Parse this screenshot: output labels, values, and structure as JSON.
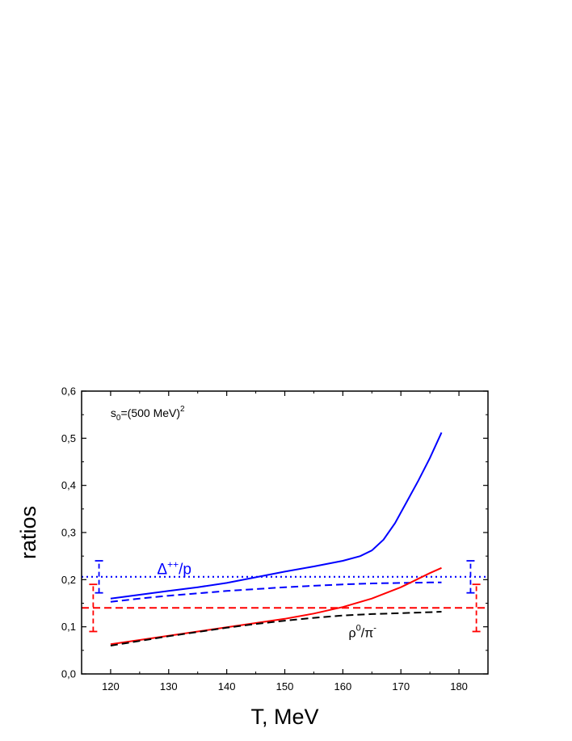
{
  "chart_data": {
    "type": "line",
    "xlabel": "T, MeV",
    "ylabel": "ratios",
    "xlim": [
      115,
      185
    ],
    "ylim": [
      0.0,
      0.6
    ],
    "x_ticks": [
      "120",
      "130",
      "140",
      "150",
      "160",
      "170",
      "180"
    ],
    "y_ticks": [
      "0,0",
      "0,1",
      "0,2",
      "0,3",
      "0,4",
      "0,5",
      "0,6"
    ],
    "grid": false,
    "annotations": {
      "s0": {
        "base": "s",
        "sub": "0",
        "mid": "=(500 MeV)",
        "sup": "2",
        "x": 120,
        "y": 0.545
      },
      "delta": {
        "base": "Δ",
        "sup": "++",
        "rest": "/p",
        "x": 128,
        "y": 0.212,
        "color": "#0000ff"
      },
      "rho": {
        "base": "ρ",
        "sup": "0",
        "mid": "/π",
        "sup2": "-",
        "x": 161,
        "y": 0.078,
        "color": "#000000"
      }
    },
    "series": [
      {
        "style": "solid",
        "color": "#0000ff",
        "x": [
          120,
          125,
          130,
          135,
          140,
          145,
          150,
          155,
          160,
          163,
          165,
          167,
          169,
          171,
          173,
          175,
          177
        ],
        "y": [
          0.16,
          0.168,
          0.176,
          0.184,
          0.193,
          0.205,
          0.217,
          0.228,
          0.24,
          0.25,
          0.262,
          0.285,
          0.32,
          0.365,
          0.41,
          0.458,
          0.512
        ]
      },
      {
        "style": "dashed",
        "color": "#0000ff",
        "x": [
          120,
          125,
          130,
          135,
          140,
          145,
          150,
          155,
          160,
          165,
          170,
          175,
          177
        ],
        "y": [
          0.153,
          0.16,
          0.166,
          0.171,
          0.176,
          0.18,
          0.184,
          0.187,
          0.19,
          0.192,
          0.193,
          0.194,
          0.194
        ]
      },
      {
        "style": "dotted",
        "color": "#0000ff",
        "x": [
          115,
          185
        ],
        "y": [
          0.206,
          0.206
        ]
      },
      {
        "style": "solid",
        "color": "#ff0000",
        "x": [
          120,
          125,
          130,
          135,
          140,
          145,
          150,
          155,
          160,
          165,
          170,
          173,
          175,
          177
        ],
        "y": [
          0.063,
          0.072,
          0.081,
          0.09,
          0.099,
          0.108,
          0.117,
          0.128,
          0.142,
          0.16,
          0.184,
          0.202,
          0.214,
          0.225
        ]
      },
      {
        "style": "dashed",
        "color": "#000000",
        "x": [
          120,
          125,
          130,
          135,
          140,
          145,
          150,
          155,
          160,
          165,
          170,
          175,
          177
        ],
        "y": [
          0.06,
          0.07,
          0.08,
          0.089,
          0.098,
          0.106,
          0.113,
          0.119,
          0.124,
          0.127,
          0.129,
          0.131,
          0.132
        ]
      },
      {
        "style": "dashed",
        "color": "#ff0000",
        "x": [
          115,
          185
        ],
        "y": [
          0.14,
          0.14
        ]
      }
    ],
    "error_bars": [
      {
        "x": 118,
        "y": 0.206,
        "low": 0.172,
        "high": 0.24,
        "color": "#0000ff",
        "style": "dashed"
      },
      {
        "x": 182,
        "y": 0.206,
        "low": 0.172,
        "high": 0.24,
        "color": "#0000ff",
        "style": "dashed"
      },
      {
        "x": 117,
        "y": 0.14,
        "low": 0.09,
        "high": 0.19,
        "color": "#ff0000",
        "style": "dashed"
      },
      {
        "x": 183,
        "y": 0.14,
        "low": 0.09,
        "high": 0.19,
        "color": "#ff0000",
        "style": "dashed"
      }
    ]
  }
}
